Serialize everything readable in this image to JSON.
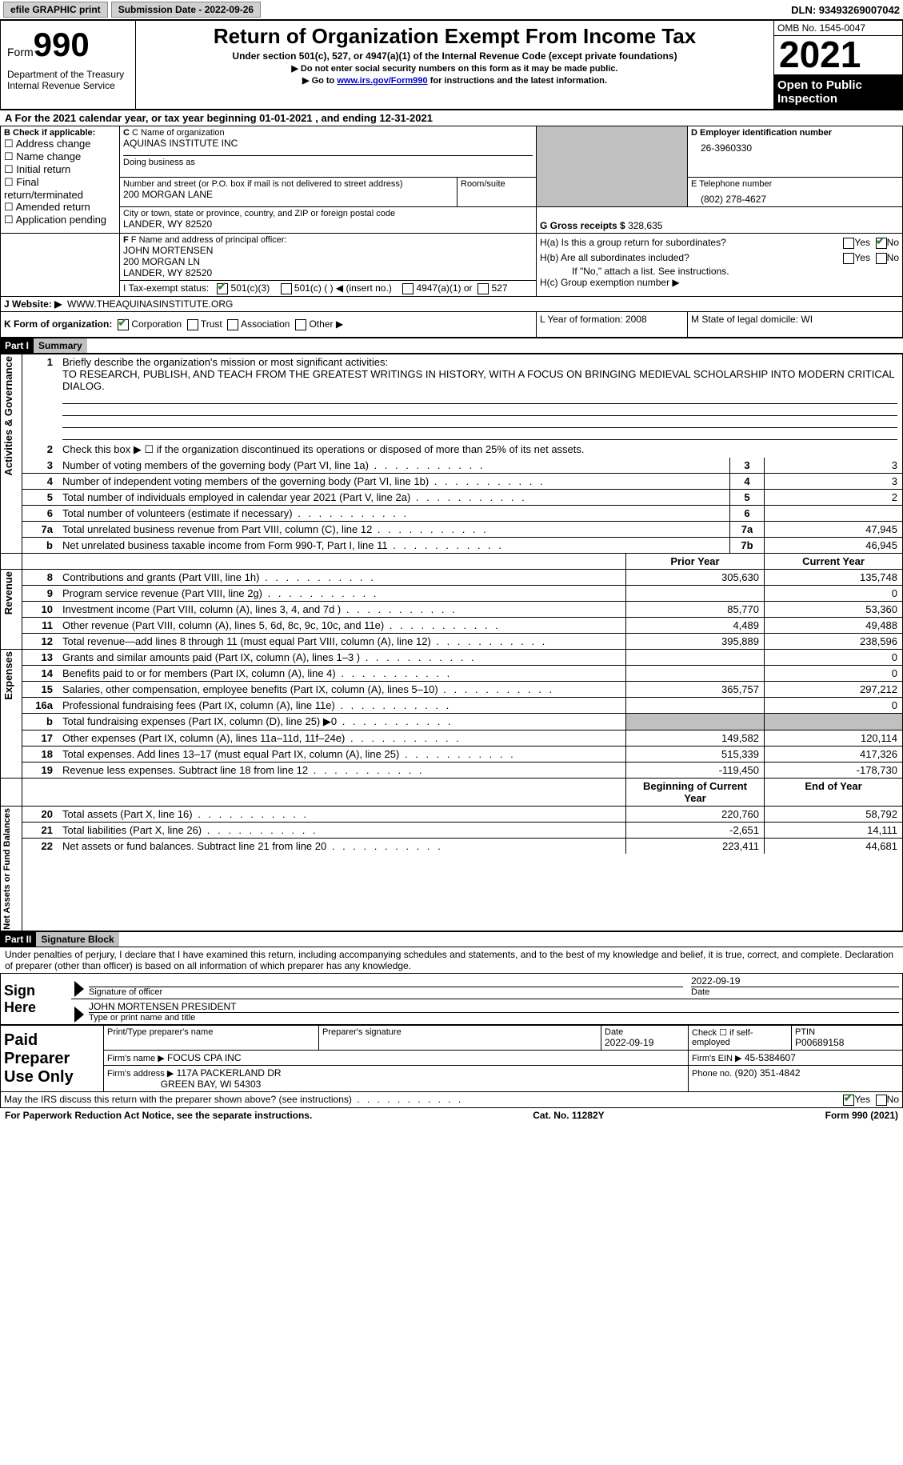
{
  "topbar": {
    "efile_label": "efile GRAPHIC print",
    "submission_label": "Submission Date - 2022-09-26",
    "dln_label": "DLN: 93493269007042"
  },
  "header": {
    "form_word": "Form",
    "form_number": "990",
    "dept1": "Department of the Treasury",
    "dept2": "Internal Revenue Service",
    "title": "Return of Organization Exempt From Income Tax",
    "subtitle": "Under section 501(c), 527, or 4947(a)(1) of the Internal Revenue Code (except private foundations)",
    "note1": "▶ Do not enter social security numbers on this form as it may be made public.",
    "note2_pre": "▶ Go to ",
    "note2_link": "www.irs.gov/Form990",
    "note2_post": " for instructions and the latest information.",
    "omb": "OMB No. 1545-0047",
    "year": "2021",
    "open_public": "Open to Public Inspection"
  },
  "period": {
    "line": "For the 2021 calendar year, or tax year beginning 01-01-2021    , and ending 12-31-2021",
    "prefix": "A"
  },
  "boxB": {
    "title": "B Check if applicable:",
    "opts": [
      "Address change",
      "Name change",
      "Initial return",
      "Final return/terminated",
      "Amended return",
      "Application pending"
    ]
  },
  "boxC": {
    "name_lbl": "C Name of organization",
    "name_val": "AQUINAS INSTITUTE INC",
    "dba_lbl": "Doing business as",
    "street_lbl": "Number and street (or P.O. box if mail is not delivered to street address)",
    "room_lbl": "Room/suite",
    "street_val": "200 MORGAN LANE",
    "city_lbl": "City or town, state or province, country, and ZIP or foreign postal code",
    "city_val": "LANDER, WY  82520"
  },
  "boxD": {
    "lbl": "D Employer identification number",
    "val": "26-3960330"
  },
  "boxE": {
    "lbl": "E Telephone number",
    "val": "(802) 278-4627"
  },
  "boxG": {
    "lbl": "G Gross receipts $",
    "val": "328,635"
  },
  "boxF": {
    "lbl": "F  Name and address of principal officer:",
    "line1": "JOHN MORTENSEN",
    "line2": "200 MORGAN LN",
    "line3": "LANDER, WY  82520"
  },
  "boxH": {
    "a_lbl": "H(a)  Is this a group return for subordinates?",
    "b_lbl": "H(b)  Are all subordinates included?",
    "note": "If \"No,\" attach a list. See instructions.",
    "c_lbl": "H(c)  Group exemption number ▶",
    "yes": "Yes",
    "no": "No"
  },
  "boxI": {
    "lbl": "I    Tax-exempt status:",
    "o1": "501(c)(3)",
    "o2": "501(c) (  ) ◀ (insert no.)",
    "o3": "4947(a)(1) or",
    "o4": "527"
  },
  "boxJ": {
    "lbl": "J    Website: ▶",
    "val": "WWW.THEAQUINASINSTITUTE.ORG"
  },
  "boxK": {
    "lbl": "K Form of organization:",
    "corp": "Corporation",
    "trust": "Trust",
    "assoc": "Association",
    "other": "Other ▶"
  },
  "boxL": {
    "lbl": "L Year of formation: 2008"
  },
  "boxM": {
    "lbl": "M State of legal domicile: WI"
  },
  "part1": {
    "bar": "Part I",
    "title": "Summary",
    "side_ag": "Activities & Governance",
    "side_rev": "Revenue",
    "side_exp": "Expenses",
    "side_net": "Net Assets or Fund Balances",
    "l1_lbl": "Briefly describe the organization's mission or most significant activities:",
    "l1_val": "TO RESEARCH, PUBLISH, AND TEACH FROM THE GREATEST WRITINGS IN HISTORY, WITH A FOCUS ON BRINGING MEDIEVAL SCHOLARSHIP INTO MODERN CRITICAL DIALOG.",
    "l2": "Check this box ▶ ☐  if the organization discontinued its operations or disposed of more than 25% of its net assets.",
    "rows_ag": [
      {
        "n": "3",
        "txt": "Number of voting members of the governing body (Part VI, line 1a)",
        "box": "3",
        "val": "3"
      },
      {
        "n": "4",
        "txt": "Number of independent voting members of the governing body (Part VI, line 1b)",
        "box": "4",
        "val": "3"
      },
      {
        "n": "5",
        "txt": "Total number of individuals employed in calendar year 2021 (Part V, line 2a)",
        "box": "5",
        "val": "2"
      },
      {
        "n": "6",
        "txt": "Total number of volunteers (estimate if necessary)",
        "box": "6",
        "val": ""
      },
      {
        "n": "7a",
        "txt": "Total unrelated business revenue from Part VIII, column (C), line 12",
        "box": "7a",
        "val": "47,945"
      },
      {
        "n": "b",
        "txt": "Net unrelated business taxable income from Form 990-T, Part I, line 11",
        "box": "7b",
        "val": "46,945"
      }
    ],
    "hdr_prior": "Prior Year",
    "hdr_current": "Current Year",
    "rows_rev": [
      {
        "n": "8",
        "txt": "Contributions and grants (Part VIII, line 1h)",
        "p": "305,630",
        "c": "135,748"
      },
      {
        "n": "9",
        "txt": "Program service revenue (Part VIII, line 2g)",
        "p": "",
        "c": "0"
      },
      {
        "n": "10",
        "txt": "Investment income (Part VIII, column (A), lines 3, 4, and 7d )",
        "p": "85,770",
        "c": "53,360"
      },
      {
        "n": "11",
        "txt": "Other revenue (Part VIII, column (A), lines 5, 6d, 8c, 9c, 10c, and 11e)",
        "p": "4,489",
        "c": "49,488"
      },
      {
        "n": "12",
        "txt": "Total revenue—add lines 8 through 11 (must equal Part VIII, column (A), line 12)",
        "p": "395,889",
        "c": "238,596"
      }
    ],
    "rows_exp": [
      {
        "n": "13",
        "txt": "Grants and similar amounts paid (Part IX, column (A), lines 1–3 )",
        "p": "",
        "c": "0"
      },
      {
        "n": "14",
        "txt": "Benefits paid to or for members (Part IX, column (A), line 4)",
        "p": "",
        "c": "0"
      },
      {
        "n": "15",
        "txt": "Salaries, other compensation, employee benefits (Part IX, column (A), lines 5–10)",
        "p": "365,757",
        "c": "297,212"
      },
      {
        "n": "16a",
        "txt": "Professional fundraising fees (Part IX, column (A), line 11e)",
        "p": "",
        "c": "0"
      },
      {
        "n": "b",
        "txt": "Total fundraising expenses (Part IX, column (D), line 25) ▶0",
        "p": "shade",
        "c": "shade"
      },
      {
        "n": "17",
        "txt": "Other expenses (Part IX, column (A), lines 11a–11d, 11f–24e)",
        "p": "149,582",
        "c": "120,114"
      },
      {
        "n": "18",
        "txt": "Total expenses. Add lines 13–17 (must equal Part IX, column (A), line 25)",
        "p": "515,339",
        "c": "417,326"
      },
      {
        "n": "19",
        "txt": "Revenue less expenses. Subtract line 18 from line 12",
        "p": "-119,450",
        "c": "-178,730"
      }
    ],
    "hdr_begin": "Beginning of Current Year",
    "hdr_end": "End of Year",
    "rows_net": [
      {
        "n": "20",
        "txt": "Total assets (Part X, line 16)",
        "p": "220,760",
        "c": "58,792"
      },
      {
        "n": "21",
        "txt": "Total liabilities (Part X, line 26)",
        "p": "-2,651",
        "c": "14,111"
      },
      {
        "n": "22",
        "txt": "Net assets or fund balances. Subtract line 21 from line 20",
        "p": "223,411",
        "c": "44,681"
      }
    ]
  },
  "part2": {
    "bar": "Part II",
    "title": "Signature Block",
    "decl": "Under penalties of perjury, I declare that I have examined this return, including accompanying schedules and statements, and to the best of my knowledge and belief, it is true, correct, and complete. Declaration of preparer (other than officer) is based on all information of which preparer has any knowledge.",
    "sign_here": "Sign Here",
    "sig_officer": "Signature of officer",
    "sig_date": "2022-09-19",
    "sig_name": "JOHN MORTENSEN  PRESIDENT",
    "sig_name_lbl": "Type or print name and title",
    "paid": "Paid Preparer Use Only",
    "prep_name_lbl": "Print/Type preparer's name",
    "prep_sig_lbl": "Preparer's signature",
    "prep_date_lbl": "Date",
    "prep_date": "2022-09-19",
    "self_emp": "Check ☐ if self-employed",
    "ptin_lbl": "PTIN",
    "ptin": "P00689158",
    "firm_name_lbl": "Firm's name    ▶",
    "firm_name": "FOCUS CPA INC",
    "firm_ein_lbl": "Firm's EIN ▶",
    "firm_ein": "45-5384607",
    "firm_addr_lbl": "Firm's address ▶",
    "firm_addr1": "117A PACKERLAND DR",
    "firm_addr2": "GREEN BAY, WI  54303",
    "phone_lbl": "Phone no.",
    "phone": "(920) 351-4842",
    "discuss": "May the IRS discuss this return with the preparer shown above? (see instructions)",
    "yes": "Yes",
    "no": "No"
  },
  "footer": {
    "left": "For Paperwork Reduction Act Notice, see the separate instructions.",
    "mid": "Cat. No. 11282Y",
    "right": "Form 990 (2021)"
  }
}
